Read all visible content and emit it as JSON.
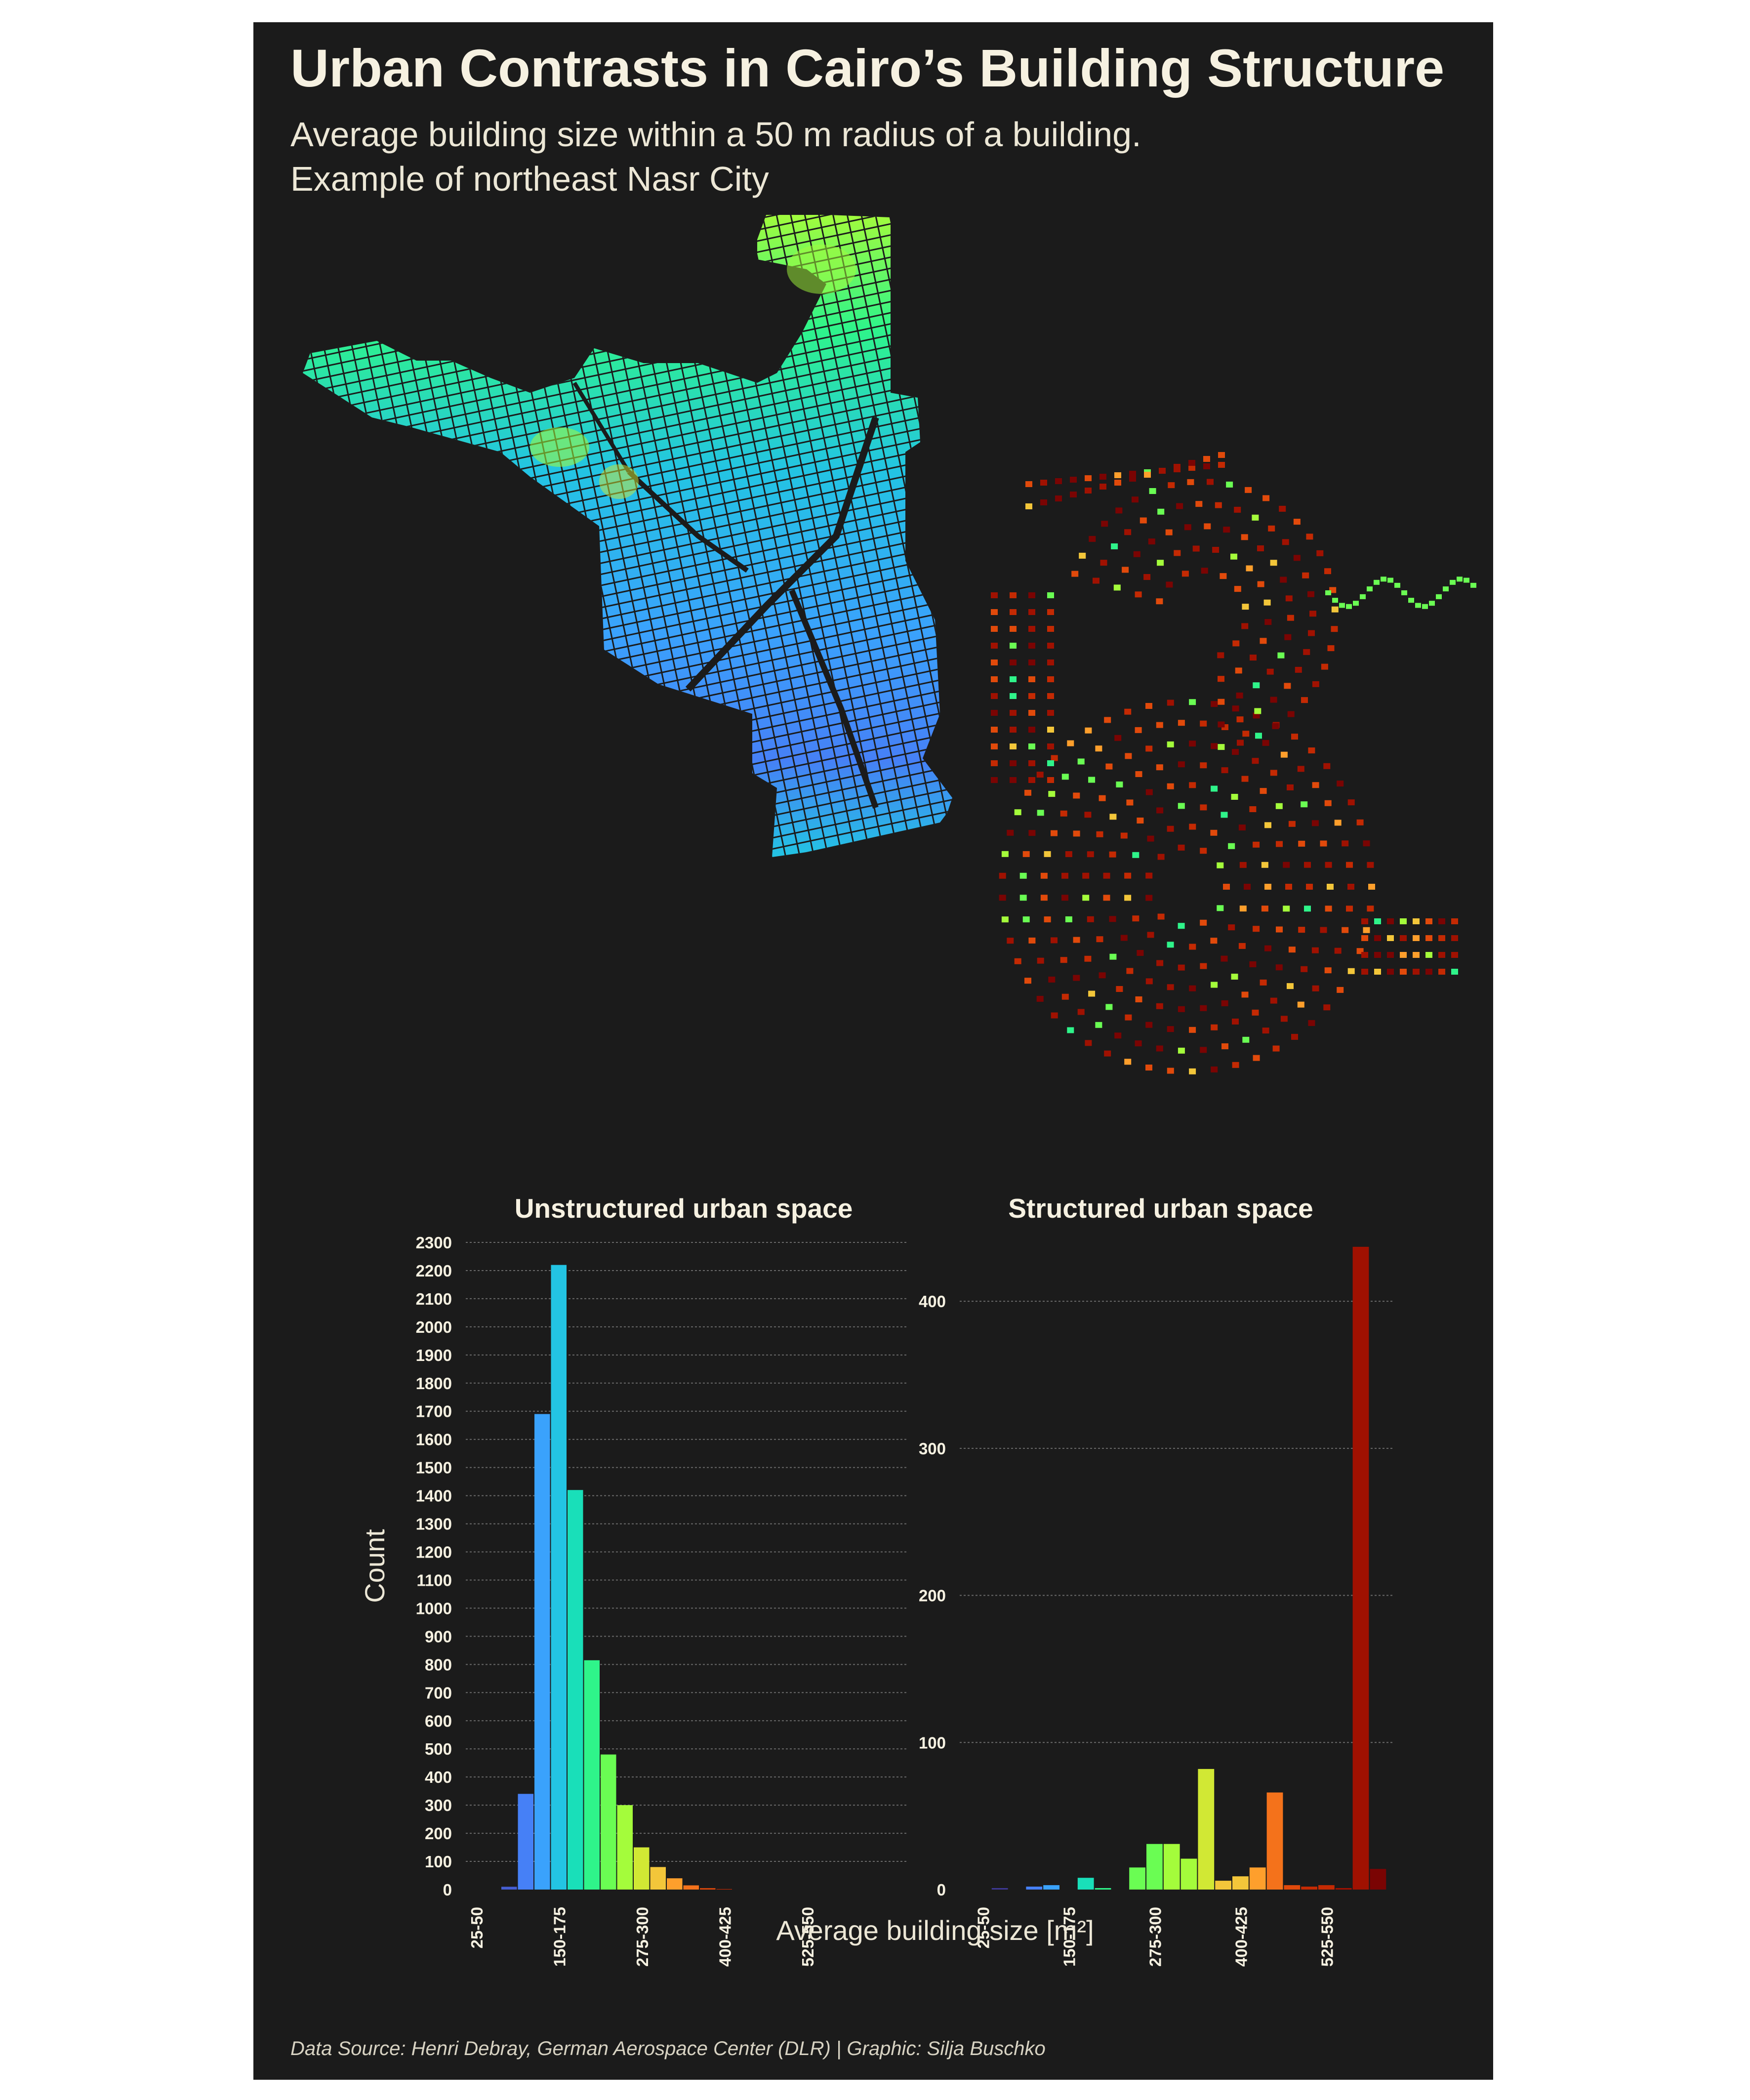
{
  "header": {
    "title": "Urban Contrasts in Cairo’s Building Structure",
    "subtitle_line1": "Average building size within a 50 m radius of a building.",
    "subtitle_line2": "Example of northeast Nasr City"
  },
  "footer": {
    "caption": "Data Source: Henri Debray, German Aerospace Center (DLR) | Graphic: Silja Buschko"
  },
  "colors": {
    "background": "#1b1b1b",
    "text": "#f6f1e1",
    "grid": "#6a6a6a",
    "palette_low": "#30123b",
    "palette_high": "#7a0403"
  },
  "map": {
    "unstructured_colormap": "turbo (blue-green)",
    "structured_colormap": "turbo (green-red)"
  },
  "chart_data": [
    {
      "type": "bar",
      "title": "Unstructured urban space",
      "ylabel": "Count",
      "xlabel": "Average building size [m²]",
      "tick_labels": [
        "25-50",
        "150-175",
        "275-300",
        "400-425",
        "525-550"
      ],
      "yticks": [
        0,
        100,
        200,
        300,
        400,
        500,
        600,
        700,
        800,
        900,
        1000,
        1100,
        1200,
        1300,
        1400,
        1500,
        1600,
        1700,
        1800,
        1900,
        2000,
        2100,
        2200,
        2300
      ],
      "ylim": [
        0,
        2300
      ],
      "bins": [
        "25-50",
        "50-75",
        "75-100",
        "100-125",
        "125-150",
        "150-175",
        "175-200",
        "200-225",
        "225-250",
        "250-275",
        "275-300",
        "300-325",
        "325-350",
        "350-375",
        "375-400",
        "400-425",
        "425-450",
        "450-475",
        "475-500",
        "500-525",
        "525-550",
        "550-575",
        "575-600"
      ],
      "values": [
        0,
        0,
        10,
        340,
        1690,
        2220,
        1420,
        815,
        480,
        300,
        150,
        80,
        40,
        15,
        5,
        2,
        0,
        0,
        0,
        0,
        0,
        0,
        0
      ],
      "bar_colors": [
        "#30123b",
        "#3e3994",
        "#455ed2",
        "#4680f6",
        "#3aa2fc",
        "#23c4e3",
        "#19dfb9",
        "#2ff48a",
        "#6afd53",
        "#a4fc3b",
        "#d1e834",
        "#f3c63a",
        "#fe9f2c",
        "#f4721b",
        "#e14a0b",
        "#c42a03",
        "#a01101",
        "#7a0403",
        "#7a0403",
        "#7a0403",
        "#7a0403",
        "#7a0403",
        "#7a0403"
      ],
      "grid": true
    },
    {
      "type": "bar",
      "title": "Structured urban space",
      "ylabel": "",
      "xlabel": "Average building size [m²]",
      "tick_labels": [
        "25-50",
        "150-175",
        "275-300",
        "400-425",
        "525-550"
      ],
      "yticks": [
        0,
        100,
        200,
        300,
        400
      ],
      "ylim": [
        0,
        440
      ],
      "bins": [
        "25-50",
        "50-75",
        "75-100",
        "100-125",
        "125-150",
        "150-175",
        "175-200",
        "200-225",
        "225-250",
        "250-275",
        "275-300",
        "300-325",
        "325-350",
        "350-375",
        "375-400",
        "400-425",
        "425-450",
        "450-475",
        "475-500",
        "500-525",
        "525-550",
        "550-575",
        "575-600",
        "600-625"
      ],
      "values": [
        0,
        1,
        0,
        2,
        3,
        0,
        8,
        1,
        0,
        15,
        31,
        31,
        21,
        82,
        6,
        9,
        15,
        66,
        3,
        2,
        3,
        1,
        437,
        14
      ],
      "bar_colors": [
        "#30123b",
        "#3e3994",
        "#455ed2",
        "#4680f6",
        "#3aa2fc",
        "#23c4e3",
        "#19dfb9",
        "#2ff48a",
        "#6afd53",
        "#6afd53",
        "#6afd53",
        "#a4fc3b",
        "#a4fc3b",
        "#d1e834",
        "#f3c63a",
        "#f3c63a",
        "#fe9f2c",
        "#f4721b",
        "#e14a0b",
        "#c42a03",
        "#c42a03",
        "#a01101",
        "#a01101",
        "#7a0403"
      ],
      "grid": true
    }
  ]
}
